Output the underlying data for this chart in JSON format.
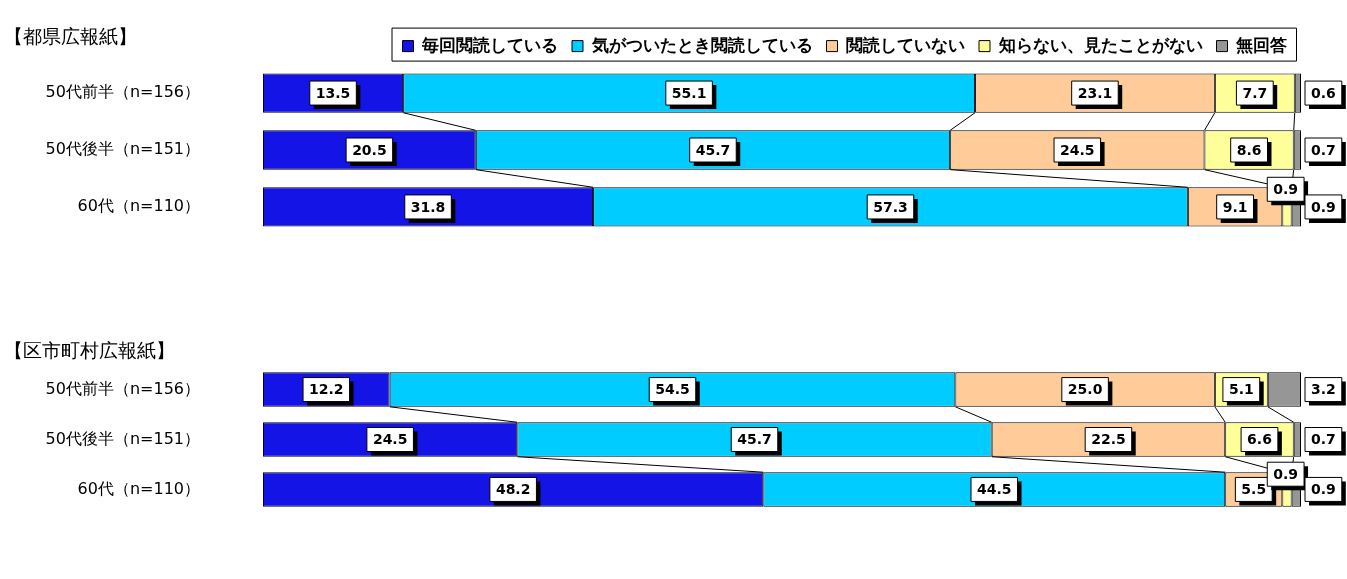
{
  "chart_data": [
    {
      "type": "bar",
      "orientation": "horizontal",
      "stacked": true,
      "title": "【都県広報紙】",
      "categories": [
        "50代前半（n=156）",
        "50代後半（n=151）",
        "60代（n=110）"
      ],
      "tick_labels": "y",
      "legend": "top right",
      "series": [
        {
          "name": "毎回閲読している",
          "color": "#1414e6",
          "values": [
            13.5,
            20.5,
            31.8
          ],
          "value_labels": [
            "13.5",
            "20.5",
            "31.8"
          ]
        },
        {
          "name": "気がついたとき閲読している",
          "color": "#00ccff",
          "values": [
            55.1,
            45.7,
            57.3
          ],
          "value_labels": [
            "55.1",
            "45.7",
            "57.3"
          ]
        },
        {
          "name": "閲読していない",
          "color": "#ffcc99",
          "values": [
            23.1,
            24.5,
            9.1
          ],
          "value_labels": [
            "23.1",
            "24.5",
            "9.1"
          ]
        },
        {
          "name": "知らない、見たことがない",
          "color": "#ffff99",
          "values": [
            7.7,
            8.6,
            0.9
          ],
          "value_labels": [
            "7.7",
            "8.6",
            "0.9"
          ]
        },
        {
          "name": "無回答",
          "color": "#969696",
          "values": [
            0.6,
            0.7,
            0.9
          ],
          "value_labels": [
            "0.6",
            "0.7",
            "0.9"
          ]
        }
      ]
    },
    {
      "type": "bar",
      "orientation": "horizontal",
      "stacked": true,
      "title": "【区市町村広報紙】",
      "categories": [
        "50代前半（n=156）",
        "50代後半（n=151）",
        "60代（n=110）"
      ],
      "tick_labels": "y",
      "series": [
        {
          "color": "#1414e6",
          "values": [
            12.2,
            24.5,
            48.2
          ],
          "value_labels": [
            "12.2",
            "24.5",
            "48.2"
          ]
        },
        {
          "color": "#00ccff",
          "values": [
            54.5,
            45.7,
            44.5
          ],
          "value_labels": [
            "54.5",
            "45.7",
            "44.5"
          ]
        },
        {
          "color": "#ffcc99",
          "values": [
            25.0,
            22.5,
            5.5
          ],
          "value_labels": [
            "25.0",
            "22.5",
            "5.5"
          ]
        },
        {
          "color": "#ffff99",
          "values": [
            5.1,
            6.6,
            0.9
          ],
          "value_labels": [
            "5.1",
            "6.6",
            "0.9"
          ]
        },
        {
          "color": "#969696",
          "values": [
            3.2,
            0.7,
            0.9
          ],
          "value_labels": [
            "3.2",
            "0.7",
            "0.9"
          ]
        }
      ]
    }
  ]
}
